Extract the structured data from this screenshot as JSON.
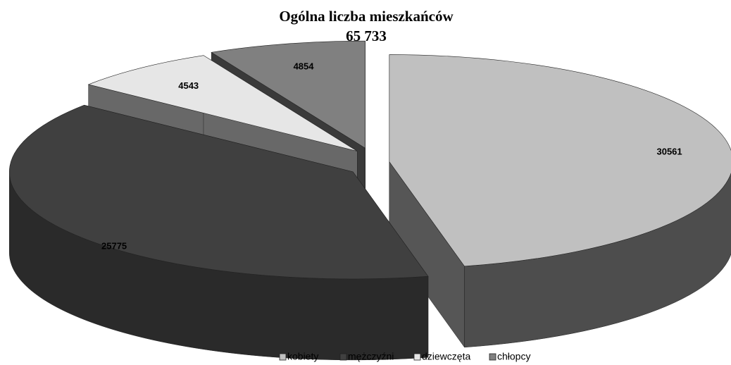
{
  "chart_data": {
    "type": "pie3d",
    "title": "Ogólna liczba mieszkańców",
    "subtitle": "65 733",
    "categories": [
      "kobiety",
      "mężczyźni",
      "dziewczęta",
      "chłopcy"
    ],
    "values": [
      30561,
      25775,
      4543,
      4854
    ],
    "colors": [
      "#c0c0c0",
      "#404040",
      "#e6e6e6",
      "#808080"
    ],
    "legend": "bottom"
  }
}
